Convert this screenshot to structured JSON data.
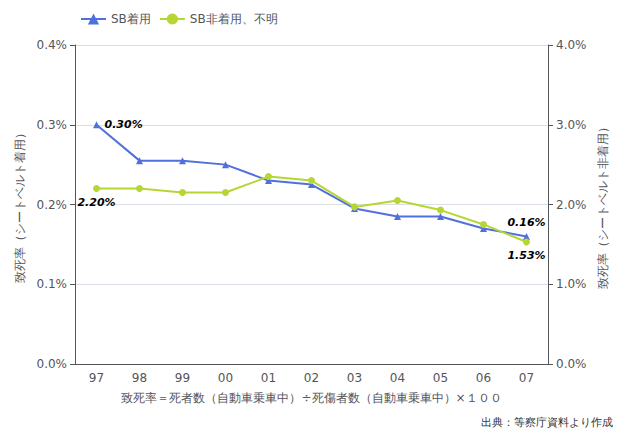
{
  "chart_data": {
    "type": "line",
    "categories": [
      "97",
      "98",
      "99",
      "00",
      "01",
      "02",
      "03",
      "04",
      "05",
      "06",
      "07"
    ],
    "series": [
      {
        "name": "SB着用",
        "marker": "triangle",
        "axis": "y",
        "values": [
          0.3,
          0.255,
          0.255,
          0.25,
          0.23,
          0.225,
          0.195,
          0.185,
          0.185,
          0.17,
          0.16
        ]
      },
      {
        "name": "SB非着用、不明",
        "marker": "circle",
        "axis": "y2",
        "values": [
          2.2,
          2.2,
          2.15,
          2.15,
          2.35,
          2.3,
          1.97,
          2.05,
          1.93,
          1.75,
          1.53
        ]
      }
    ],
    "xlabel": "致死率＝死者数（自動車乗車中）÷死傷者数（自動車乗車中）×１００",
    "ylabel": "致死率（シートベルト着用）",
    "y2label": "致死率（シートベルト非着用）",
    "ylim": [
      0.0,
      0.4
    ],
    "yticks": [
      {
        "value": 0.0,
        "label": "0.0%"
      },
      {
        "value": 0.1,
        "label": "0.1%"
      },
      {
        "value": 0.2,
        "label": "0.2%"
      },
      {
        "value": 0.3,
        "label": "0.3%"
      },
      {
        "value": 0.4,
        "label": "0.4%"
      }
    ],
    "y2lim": [
      0.0,
      4.0
    ],
    "y2ticks": [
      {
        "value": 0.0,
        "label": "0.0%"
      },
      {
        "value": 1.0,
        "label": "1.0%"
      },
      {
        "value": 2.0,
        "label": "2.0%"
      },
      {
        "value": 3.0,
        "label": "3.0%"
      },
      {
        "value": 4.0,
        "label": "4.0%"
      }
    ],
    "grid": true,
    "legend": "upper left",
    "annotations": [
      {
        "text": "0.30%",
        "series": "SB着用",
        "x": "97",
        "y": 0.3
      },
      {
        "text": "0.16%",
        "series": "SB着用",
        "x": "07",
        "y": 0.16
      },
      {
        "text": "2.20%",
        "series": "SB非着用、不明",
        "x": "97",
        "y": 2.2
      },
      {
        "text": "1.53%",
        "series": "SB非着用、不明",
        "x": "07",
        "y": 1.53
      }
    ],
    "source": "出典：等察庁資料より作成"
  }
}
